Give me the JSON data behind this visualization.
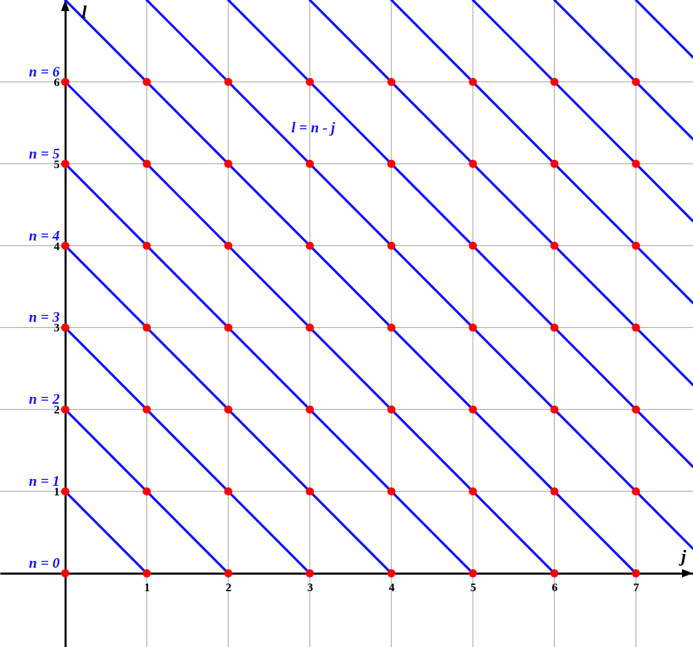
{
  "chart_data": {
    "type": "line",
    "xlabel": "j",
    "ylabel": "l",
    "xlim": [
      -0.8,
      7.7
    ],
    "ylim": [
      -0.9,
      7
    ],
    "xticks": [
      1,
      2,
      3,
      4,
      5,
      6,
      7
    ],
    "yticks": [
      1,
      2,
      3,
      4,
      5,
      6
    ],
    "grid": true,
    "line_style": "solid",
    "annotations": [
      "n = 0",
      "n = 1",
      "n = 2",
      "n = 3",
      "n = 4",
      "n = 5",
      "n = 6",
      "l = n - j"
    ],
    "series": [
      {
        "color": "#1010ff",
        "x": [
          0,
          1
        ],
        "values": [
          1,
          0
        ]
      },
      {
        "color": "#1010ff",
        "x": [
          0,
          2
        ],
        "values": [
          2,
          0
        ]
      },
      {
        "color": "#1010ff",
        "x": [
          0,
          3
        ],
        "values": [
          3,
          0
        ]
      },
      {
        "color": "#1010ff",
        "x": [
          0,
          4
        ],
        "values": [
          4,
          0
        ]
      },
      {
        "color": "#1010ff",
        "x": [
          0,
          5
        ],
        "values": [
          5,
          0
        ]
      },
      {
        "color": "#1010ff",
        "x": [
          0,
          6
        ],
        "values": [
          6,
          0
        ]
      },
      {
        "color": "#1010ff",
        "x": [
          0,
          7
        ],
        "values": [
          7,
          0
        ]
      },
      {
        "color": "#1010ff",
        "x": [
          1,
          7.7
        ],
        "values": [
          7,
          0.3
        ]
      },
      {
        "color": "#1010ff",
        "x": [
          2,
          7.7
        ],
        "values": [
          7,
          1.3
        ]
      },
      {
        "color": "#1010ff",
        "x": [
          3,
          7.7
        ],
        "values": [
          7,
          2.3
        ]
      },
      {
        "color": "#1010ff",
        "x": [
          4,
          7.7
        ],
        "values": [
          7,
          3.3
        ]
      },
      {
        "color": "#1010ff",
        "x": [
          5,
          7.7
        ],
        "values": [
          7,
          4.3
        ]
      },
      {
        "color": "#1010ff",
        "x": [
          6,
          7.7
        ],
        "values": [
          7,
          5.3
        ]
      },
      {
        "color": "#1010ff",
        "x": [
          7,
          7.7
        ],
        "values": [
          7,
          6.3
        ]
      },
      {
        "type": "scatter",
        "color": "#ff0000",
        "marker": "circle",
        "x": [
          0,
          1,
          2,
          3,
          4,
          5,
          6,
          7,
          0,
          1,
          2,
          3,
          4,
          5,
          6,
          7,
          0,
          1,
          2,
          3,
          4,
          5,
          6,
          7,
          0,
          1,
          2,
          3,
          4,
          5,
          6,
          7,
          0,
          1,
          2,
          3,
          4,
          5,
          6,
          7,
          0,
          1,
          2,
          3,
          4,
          5,
          6,
          7,
          0,
          1,
          2,
          3,
          4,
          5,
          6,
          7
        ],
        "values": [
          0,
          0,
          0,
          0,
          0,
          0,
          0,
          0,
          1,
          1,
          1,
          1,
          1,
          1,
          1,
          1,
          2,
          2,
          2,
          2,
          2,
          2,
          2,
          2,
          3,
          3,
          3,
          3,
          3,
          3,
          3,
          3,
          4,
          4,
          4,
          4,
          4,
          4,
          4,
          4,
          5,
          5,
          5,
          5,
          5,
          5,
          5,
          5,
          6,
          6,
          6,
          6,
          6,
          6,
          6,
          6
        ]
      }
    ]
  }
}
